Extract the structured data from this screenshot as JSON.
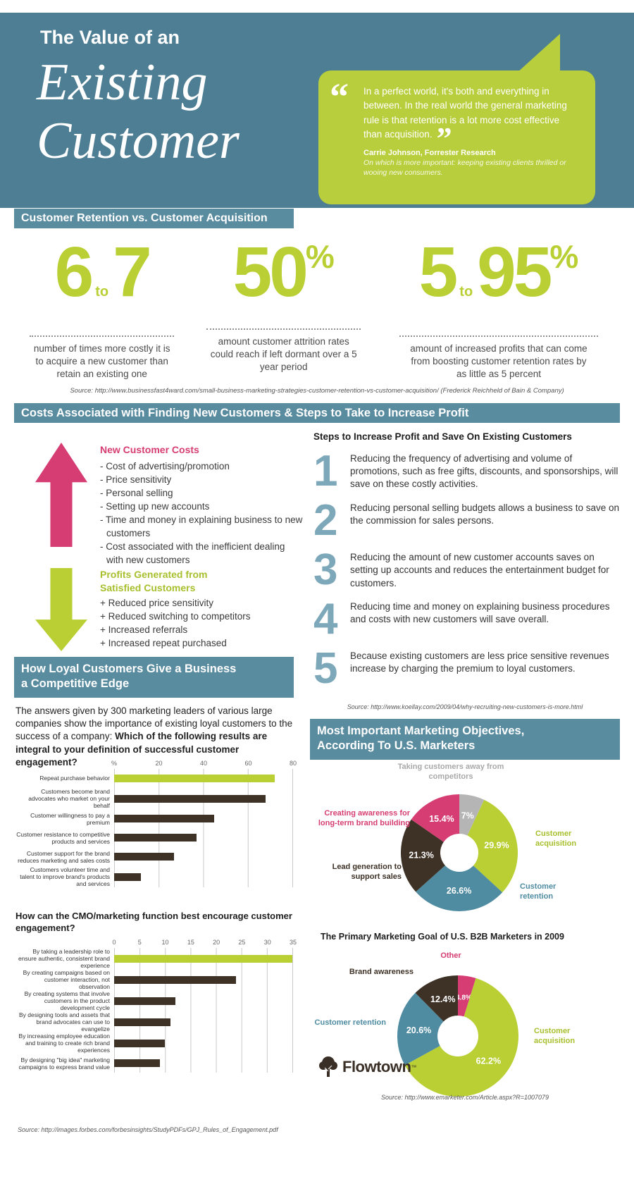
{
  "header": {
    "title_small": "The Value of an",
    "title_big1": "Existing",
    "title_big2": "Customer",
    "quote": {
      "open_mark": "“",
      "close_mark": "”",
      "text": "In a perfect world, it's both and everything in between. In the real world the general marketing rule is that retention is a lot more cost effective than acquisition.",
      "author": "Carrie Johnson, Forrester Research",
      "context": "On which is more important: keeping existing clients thrilled or wooing new consumers."
    }
  },
  "colors": {
    "header_teal": "#4e7e93",
    "banner_teal": "#5a8ca0",
    "lime": "#b9cf33",
    "pink": "#d63d72",
    "brown": "#3e3227",
    "gray": "#b5b5b5",
    "donut_teal": "#4f8ca1",
    "step_number": "#7da8ba"
  },
  "retention_section": {
    "banner": "Customer Retention vs. Customer Acquisition",
    "stats": [
      {
        "big1": "6",
        "small": "to",
        "big2": "7",
        "sup": "",
        "description": "number of times more costly it is to acquire a new customer than retain an existing one"
      },
      {
        "big1": "50",
        "small": "",
        "big2": "",
        "sup": "%",
        "description": "amount customer attrition rates could reach if left dormant over a 5 year period"
      },
      {
        "big1": "5",
        "small": "to",
        "big2": "95",
        "sup": "%",
        "description": "amount of increased profits that can come from boosting customer retention rates by as little as 5 percent"
      }
    ],
    "source": "Source: http://www.businessfast4ward.com/small-business-marketing-strategies-customer-retention-vs-customer-acquisition/ (Frederick Reichheld of Bain & Company)"
  },
  "costs_section": {
    "banner": "Costs Associated with Finding New Customers & Steps to Take to Increase Profit",
    "new_customer_costs": {
      "heading": "New Customer Costs",
      "items": [
        "- Cost of advertising/promotion",
        "- Price sensitivity",
        "- Personal selling",
        "- Setting up new accounts",
        "- Time and money in explaining business to new customers",
        "- Cost associated with the inefficient dealing with new customers"
      ]
    },
    "profits": {
      "heading": "Profits Generated from Satisfied Customers",
      "items": [
        "+ Reduced price sensitivity",
        "+ Reduced switching to competitors",
        "+ Increased referrals",
        "+ Increased repeat purchased"
      ]
    },
    "steps": {
      "heading": "Steps to Increase Profit and Save On Existing Customers",
      "items": [
        {
          "num": "1",
          "text": "Reducing the frequency of advertising and volume of promotions, such as free gifts, discounts, and sponsorships, will save on these costly activities."
        },
        {
          "num": "2",
          "text": "Reducing personal selling budgets allows a business to save on the commission for sales persons."
        },
        {
          "num": "3",
          "text": "Reducing the amount of new customer accounts saves on setting up accounts and reduces the entertainment budget for customers."
        },
        {
          "num": "4",
          "text": "Reducing time and money on explaining business procedures and costs with new customers will save overall."
        },
        {
          "num": "5",
          "text": "Because existing customers are less price sensitive revenues increase by charging the premium to loyal customers."
        }
      ],
      "source": "Source: http://www.koellay.com/2009/04/why-recruiting-new-customers-is-more.html"
    }
  },
  "loyal_section": {
    "banner_line1": "How Loyal Customers Give a Business",
    "banner_line2": "a Competitive Edge",
    "intro_normal": "The answers given by 300 marketing leaders of various large companies show the importance of existing loyal customers to the success of a company: ",
    "intro_bold": "Which of the following results are integral to your definition of successful customer engagement?",
    "source": "Source: http://images.forbes.com/forbesinsights/StudyPDFs/GPJ_Rules_of_Engagement.pdf"
  },
  "objectives_section": {
    "banner_line1": "Most Important Marketing Objectives,",
    "banner_line2": "According To U.S. Marketers",
    "source": "Source: http://www.emarketer.com/Article.aspx?R=1007079",
    "logo_text": "Flowtown",
    "logo_tm": "™"
  },
  "chart_data": [
    {
      "type": "bar",
      "orientation": "horizontal",
      "title": "Which of the following results are integral to your definition of successful customer engagement?",
      "tick_labels": [
        "%",
        "20",
        "40",
        "60",
        "80"
      ],
      "xlim": [
        0,
        80
      ],
      "grid": true,
      "categories": [
        "Repeat purchase behavior",
        "Customers become brand advocates who market on your behalf",
        "Customer willingness to pay a premium",
        "Customer resistance to competitive products and services",
        "Customer support for the brand reduces marketing and sales costs",
        "Customers volunteer time and talent to improve brand's products and services"
      ],
      "values": [
        72,
        68,
        45,
        37,
        27,
        12
      ],
      "colors": [
        "#b9cf33",
        "#3e3227",
        "#3e3227",
        "#3e3227",
        "#3e3227",
        "#3e3227"
      ]
    },
    {
      "type": "bar",
      "orientation": "horizontal",
      "title": "How can the CMO/marketing function best encourage customer engagement?",
      "tick_labels": [
        "0",
        "5",
        "10",
        "15",
        "20",
        "25",
        "30",
        "35"
      ],
      "xlim": [
        0,
        35
      ],
      "grid": true,
      "categories": [
        "By taking a leadership role to ensure authentic, consistent brand experience",
        "By creating campaigns based on customer interaction, not observation",
        "By creating systems that involve customers in the product development cycle",
        "By designing tools and assets that brand advocates can use to evangelize",
        "By increasing employee education and training to create rich brand experiences",
        "By designing \"big idea\" marketing campaigns to express brand value"
      ],
      "values": [
        35,
        24,
        12,
        11,
        10,
        9
      ],
      "colors": [
        "#b9cf33",
        "#3e3227",
        "#3e3227",
        "#3e3227",
        "#3e3227",
        "#3e3227"
      ]
    },
    {
      "type": "pie",
      "title": "Most Important Marketing Objectives, According To U.S. Marketers",
      "slices": [
        {
          "label": "Taking customers away from competitors",
          "value": 7,
          "pct_label": "7%",
          "color": "#b5b5b5",
          "label_color": "#a8a8a8"
        },
        {
          "label": "Customer acquisition",
          "value": 29.9,
          "pct_label": "29.9%",
          "color": "#b9cf33",
          "label_color": "#a8bf2d"
        },
        {
          "label": "Customer retention",
          "value": 26.6,
          "pct_label": "26.6%",
          "color": "#4f8ca1"
        },
        {
          "label": "Lead generation to support sales",
          "value": 21.3,
          "pct_label": "21.3%",
          "color": "#3e3227"
        },
        {
          "label": "Creating awareness for long-term brand building",
          "value": 15.4,
          "pct_label": "15.4%",
          "color": "#d63d72"
        }
      ]
    },
    {
      "type": "pie",
      "title": "The Primary Marketing Goal of U.S. B2B Marketers in 2009",
      "slices": [
        {
          "label": "Other",
          "value": 4.8,
          "pct_label": "4.8%",
          "color": "#d63d72"
        },
        {
          "label": "Customer acquisition",
          "value": 62.2,
          "pct_label": "62.2%",
          "color": "#b9cf33",
          "label_color": "#a8bf2d"
        },
        {
          "label": "Customer retention",
          "value": 20.6,
          "pct_label": "20.6%",
          "color": "#4f8ca1"
        },
        {
          "label": "Brand awareness",
          "value": 12.4,
          "pct_label": "12.4%",
          "color": "#3e3227"
        }
      ]
    }
  ]
}
